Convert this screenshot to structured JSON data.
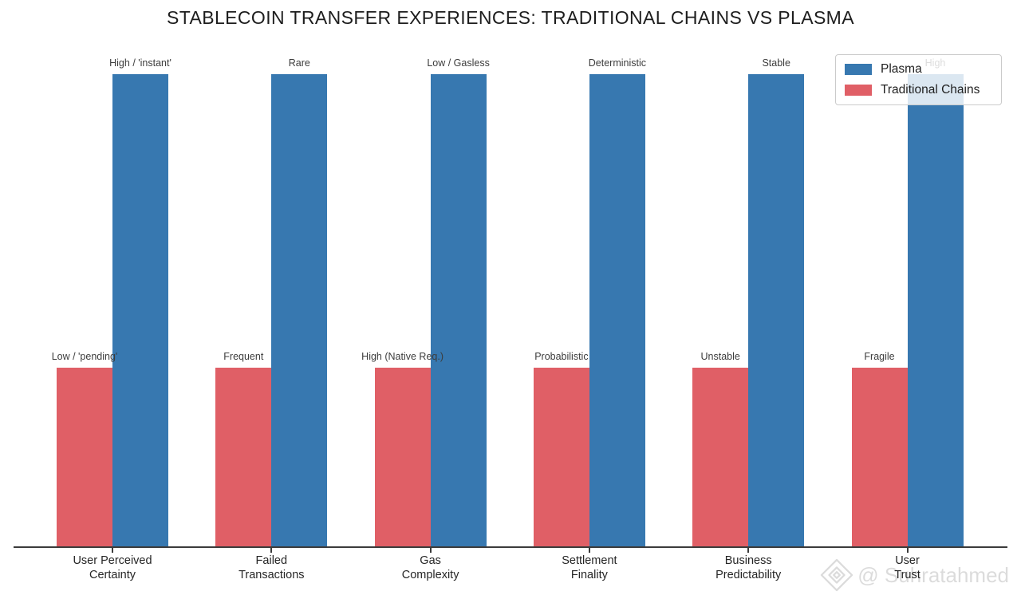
{
  "title": "STABLECOIN TRANSFER EXPERIENCES: TRADITIONAL CHAINS VS PLASMA",
  "legend": {
    "items": [
      {
        "label": "Plasma",
        "color": "#3778b0"
      },
      {
        "label": "Traditional Chains",
        "color": "#e05f66"
      }
    ]
  },
  "watermark": {
    "handle": "@ Suhratahmed",
    "icon": "gem-diamond-icon"
  },
  "chart_data": {
    "type": "bar",
    "title": "STABLECOIN TRANSFER EXPERIENCES: TRADITIONAL CHAINS VS PLASMA",
    "categories": [
      "User Perceived\nCertainty",
      "Failed\nTransactions",
      "Gas\nComplexity",
      "Settlement\nFinality",
      "Business\nPredictability",
      "User\nTrust"
    ],
    "series": [
      {
        "name": "Traditional Chains",
        "color": "#e05f66",
        "values": [
          0.38,
          0.38,
          0.38,
          0.38,
          0.38,
          0.38
        ],
        "value_labels": [
          "Low / 'pending'",
          "Frequent",
          "High (Native Req.)",
          "Probabilistic",
          "Unstable",
          "Fragile"
        ]
      },
      {
        "name": "Plasma",
        "color": "#3778b0",
        "values": [
          1.0,
          1.0,
          1.0,
          1.0,
          1.0,
          1.0
        ],
        "value_labels": [
          "High / 'instant'",
          "Rare",
          "Low / Gasless",
          "Deterministic",
          "Stable",
          "High"
        ]
      }
    ],
    "xlabel": "",
    "ylabel": "",
    "ylim": [
      0,
      1.05
    ],
    "y_axis_visible": false,
    "grid": false,
    "legend_position": "upper right",
    "axis_color": "#3b3b3b"
  }
}
